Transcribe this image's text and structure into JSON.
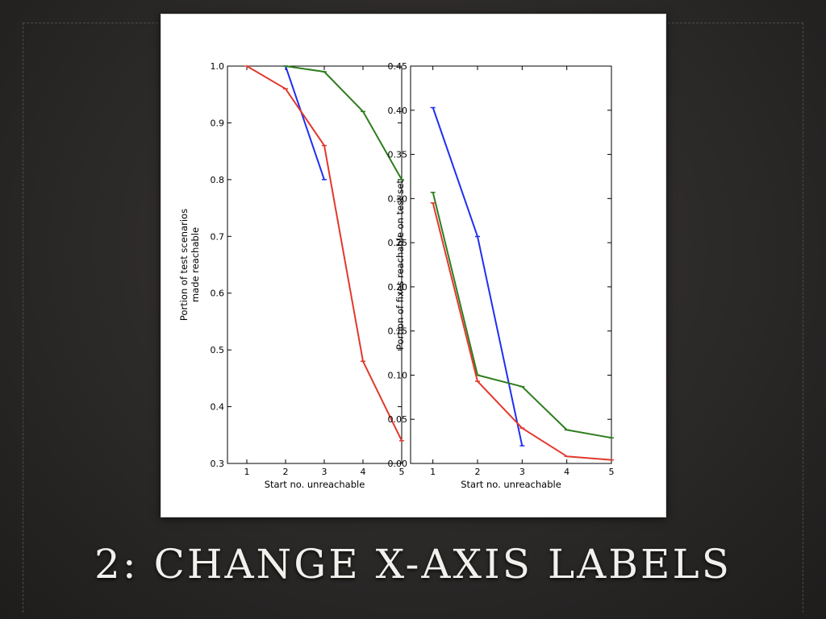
{
  "slide": {
    "title": "2: CHANGE X-AXIS LABELS"
  },
  "colors": {
    "blue": "#1f2ff0",
    "green": "#2e7d1e",
    "red": "#e2382c"
  },
  "chart_data": [
    {
      "type": "line",
      "xlabel": "Start no. unreachable",
      "ylabel": "Portion of test scenarios made reachable",
      "ylabel_lines": [
        "Portion of test scenarios",
        "made reachable"
      ],
      "xlim": [
        0.5,
        5
      ],
      "ylim": [
        0.3,
        1.0
      ],
      "xticks": [
        1,
        2,
        3,
        4,
        5
      ],
      "yticks": [
        0.3,
        0.4,
        0.5,
        0.6,
        0.7,
        0.8,
        0.9,
        1.0
      ],
      "ytick_labels": [
        "0.3",
        "0.4",
        "0.5",
        "0.6",
        "0.7",
        "0.8",
        "0.9",
        "1.0"
      ],
      "grid": false,
      "series": [
        {
          "color": "blue",
          "x": [
            2,
            3
          ],
          "y": [
            1.0,
            0.8
          ]
        },
        {
          "color": "green",
          "x": [
            2,
            3,
            4,
            5
          ],
          "y": [
            1.0,
            0.99,
            0.92,
            0.8
          ]
        },
        {
          "color": "red",
          "x": [
            1,
            2,
            3,
            4,
            5
          ],
          "y": [
            1.0,
            0.96,
            0.86,
            0.48,
            0.34
          ]
        }
      ]
    },
    {
      "type": "line",
      "xlabel": "Start no. unreachable",
      "ylabel": "Portion of fixes reachable on test set",
      "ylabel_lines": [
        "Portion of fixes reachable on test set"
      ],
      "xlim": [
        0.5,
        5
      ],
      "ylim": [
        0.0,
        0.45
      ],
      "xticks": [
        1,
        2,
        3,
        4,
        5
      ],
      "yticks": [
        0.0,
        0.05,
        0.1,
        0.15,
        0.2,
        0.25,
        0.3,
        0.35,
        0.4,
        0.45
      ],
      "ytick_labels": [
        "0.00",
        "0.05",
        "0.10",
        "0.15",
        "0.20",
        "0.25",
        "0.30",
        "0.35",
        "0.40",
        "0.45"
      ],
      "grid": false,
      "series": [
        {
          "color": "blue",
          "x": [
            1,
            2,
            3
          ],
          "y": [
            0.403,
            0.257,
            0.02
          ]
        },
        {
          "color": "green",
          "x": [
            1,
            2,
            3,
            4,
            5
          ],
          "y": [
            0.307,
            0.1,
            0.087,
            0.038,
            0.029
          ]
        },
        {
          "color": "red",
          "x": [
            1,
            2,
            3,
            4,
            5
          ],
          "y": [
            0.295,
            0.093,
            0.04,
            0.008,
            0.004
          ]
        }
      ]
    }
  ]
}
